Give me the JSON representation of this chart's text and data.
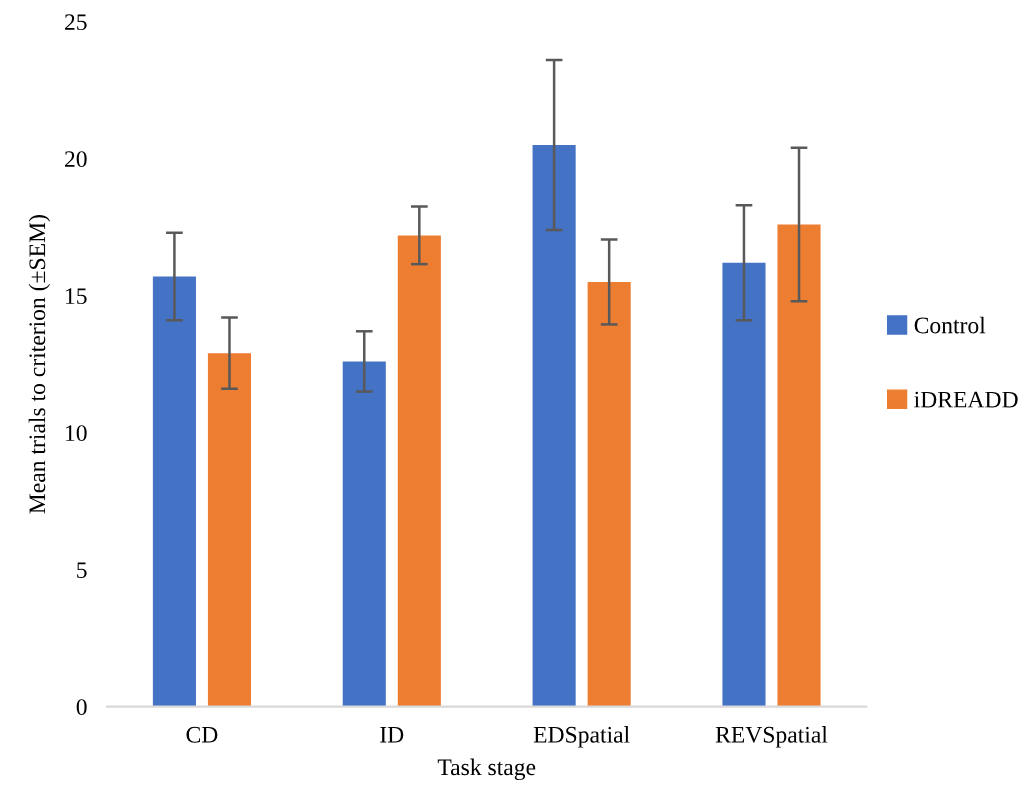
{
  "chart_data": {
    "type": "bar",
    "xlabel": "Task stage",
    "ylabel": "Mean trials to criterion (±SEM)",
    "categories": [
      "CD",
      "ID",
      "EDSpatial",
      "REVSpatial"
    ],
    "series": [
      {
        "name": "Control",
        "color": "#4472c4",
        "values": [
          15.7,
          12.6,
          20.5,
          16.2
        ],
        "errors": [
          1.6,
          1.1,
          3.1,
          2.1
        ]
      },
      {
        "name": "iDREADD",
        "color": "#ed7d31",
        "values": [
          12.9,
          17.2,
          15.5,
          17.6
        ],
        "errors": [
          1.3,
          1.05,
          1.55,
          2.8
        ]
      }
    ],
    "ylim": [
      0,
      25
    ],
    "yticks": [
      0,
      5,
      10,
      15,
      20,
      25
    ],
    "grid": false,
    "legend": "right"
  }
}
